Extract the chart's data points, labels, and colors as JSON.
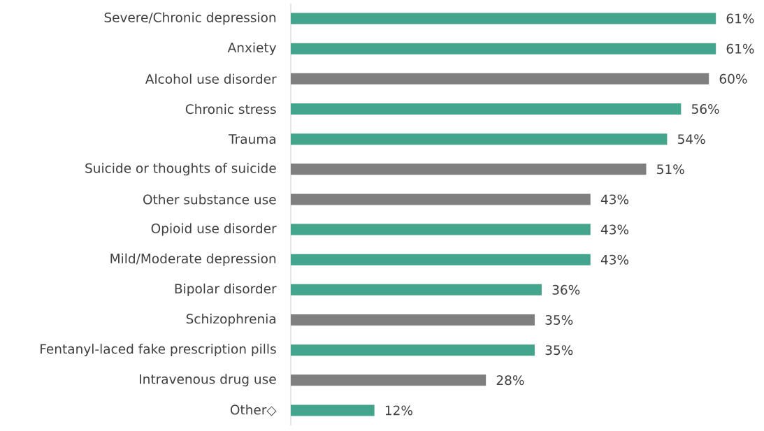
{
  "chart_data": {
    "type": "bar",
    "orientation": "horizontal",
    "categories": [
      "Severe/Chronic depression",
      "Anxiety",
      "Alcohol use disorder",
      "Chronic stress",
      "Trauma",
      "Suicide or thoughts of suicide",
      "Other substance use",
      "Opioid use disorder",
      "Mild/Moderate depression",
      "Bipolar disorder",
      "Schizophrenia",
      "Fentanyl-laced fake prescription pills",
      "Intravenous drug use",
      "Other◇"
    ],
    "values": [
      61,
      61,
      60,
      56,
      54,
      51,
      43,
      43,
      43,
      36,
      35,
      35,
      28,
      12
    ],
    "value_labels": [
      "61%",
      "61%",
      "60%",
      "56%",
      "54%",
      "51%",
      "43%",
      "43%",
      "43%",
      "36%",
      "35%",
      "35%",
      "28%",
      "12%"
    ],
    "colors": [
      "#43a58c",
      "#43a58c",
      "#7f7f7f",
      "#43a58c",
      "#43a58c",
      "#7f7f7f",
      "#7f7f7f",
      "#43a58c",
      "#43a58c",
      "#43a58c",
      "#7f7f7f",
      "#43a58c",
      "#7f7f7f",
      "#43a58c"
    ]
  }
}
